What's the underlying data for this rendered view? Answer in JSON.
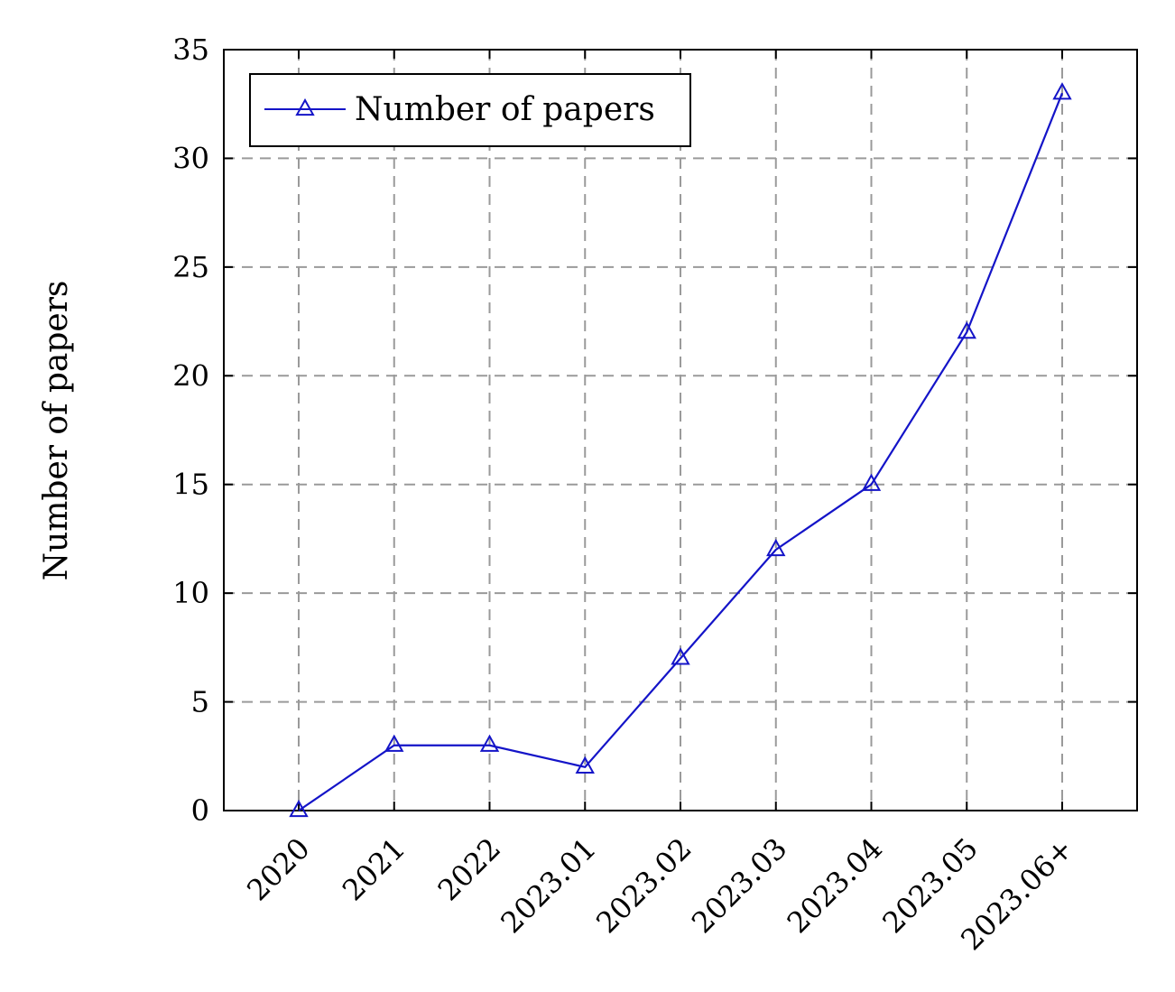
{
  "chart_data": {
    "type": "line",
    "title": "",
    "xlabel": "",
    "ylabel": "Number of papers",
    "categories": [
      "2020",
      "2021",
      "2022",
      "2023.01",
      "2023.02",
      "2023.03",
      "2023.04",
      "2023.05",
      "2023.06+"
    ],
    "series": [
      {
        "name": "Number of papers",
        "values": [
          0,
          3,
          3,
          2,
          7,
          12,
          15,
          22,
          33
        ],
        "color": "#1414c8",
        "marker": "triangle"
      }
    ],
    "ylim": [
      0,
      35
    ],
    "yticks": [
      0,
      5,
      10,
      15,
      20,
      25,
      30,
      35
    ],
    "grid": true,
    "legend_position": "top-left"
  }
}
